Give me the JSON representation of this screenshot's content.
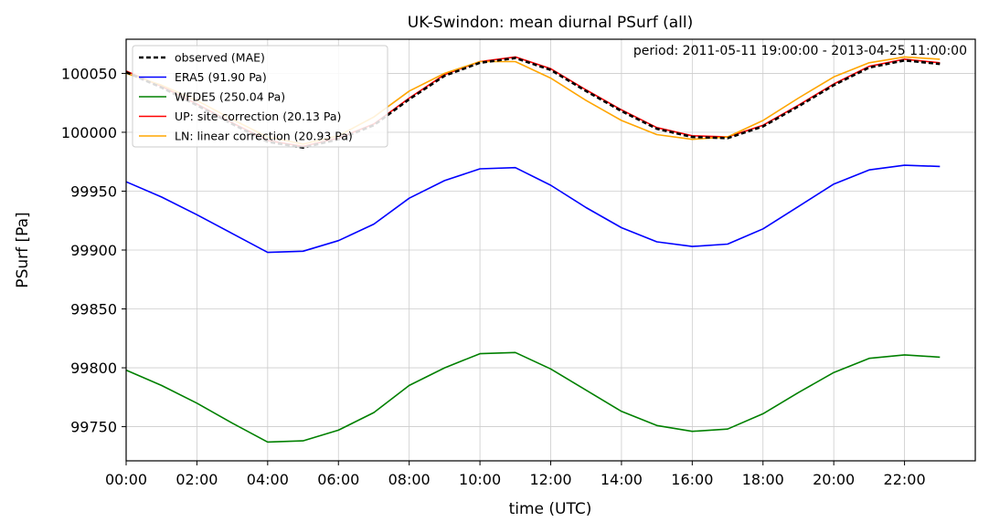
{
  "chart_data": {
    "type": "line",
    "title": "UK-Swindon: mean diurnal PSurf (all)",
    "annotation": "period: 2011-05-11 19:00:00 - 2013-04-25 11:00:00",
    "xlabel": "time (UTC)",
    "ylabel": "PSurf [Pa]",
    "x": [
      0,
      1,
      2,
      3,
      4,
      5,
      6,
      7,
      8,
      9,
      10,
      11,
      12,
      13,
      14,
      15,
      16,
      17,
      18,
      19,
      20,
      21,
      22,
      23
    ],
    "x_ticks": [
      "00:00",
      "02:00",
      "04:00",
      "06:00",
      "08:00",
      "10:00",
      "12:00",
      "14:00",
      "16:00",
      "18:00",
      "20:00",
      "22:00"
    ],
    "y_ticks": [
      "99750",
      "99800",
      "99850",
      "99900",
      "99950",
      "100000",
      "100050"
    ],
    "xlim": [
      0,
      24
    ],
    "ylim": [
      99721,
      100079
    ],
    "grid": true,
    "legend_position": "top-left",
    "series": [
      {
        "name": "observed (MAE)",
        "color": "#000000",
        "dash": true,
        "values": [
          100051,
          100038,
          100023,
          100007,
          99992,
          99987,
          99994,
          100006,
          100028,
          100048,
          100059,
          100063,
          100053,
          100035,
          100018,
          100003,
          99996,
          99995,
          100005,
          100022,
          100040,
          100055,
          100061,
          100058
        ]
      },
      {
        "name": "ERA5 (91.90 Pa)",
        "color": "#0000ff",
        "dash": false,
        "values": [
          99958,
          99945,
          99930,
          99914,
          99898,
          99899,
          99908,
          99922,
          99944,
          99959,
          99969,
          99970,
          99955,
          99936,
          99919,
          99907,
          99903,
          99905,
          99918,
          99937,
          99956,
          99968,
          99972,
          99971
        ]
      },
      {
        "name": "WFDE5 (250.04 Pa)",
        "color": "#008000",
        "dash": false,
        "values": [
          99798,
          99785,
          99770,
          99753,
          99737,
          99738,
          99747,
          99762,
          99785,
          99800,
          99812,
          99813,
          99799,
          99781,
          99763,
          99751,
          99746,
          99748,
          99761,
          99779,
          99796,
          99808,
          99811,
          99809
        ]
      },
      {
        "name": "UP: site correction (20.13 Pa)",
        "color": "#ff0000",
        "dash": false,
        "values": [
          100052,
          100039,
          100024,
          100008,
          99993,
          99988,
          99995,
          100007,
          100029,
          100049,
          100060,
          100064,
          100054,
          100036,
          100019,
          100004,
          99997,
          99996,
          100006,
          100023,
          100041,
          100056,
          100062,
          100059
        ]
      },
      {
        "name": "LN: linear correction (20.93 Pa)",
        "color": "#ffa500",
        "dash": false,
        "values": [
          100050,
          100040,
          100027,
          100011,
          99996,
          99990,
          99997,
          100013,
          100035,
          100050,
          100060,
          100060,
          100046,
          100027,
          100010,
          99998,
          99994,
          99996,
          100010,
          100029,
          100047,
          100059,
          100064,
          100062
        ]
      }
    ]
  }
}
